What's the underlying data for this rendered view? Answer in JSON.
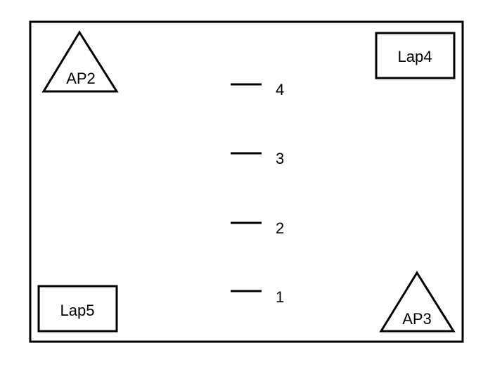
{
  "diagram": {
    "access_points": [
      {
        "label": "AP2"
      },
      {
        "label": "AP3"
      }
    ],
    "laptops": [
      {
        "label": "Lap4"
      },
      {
        "label": "Lap5"
      }
    ],
    "position_markers": [
      {
        "label": "4"
      },
      {
        "label": "3"
      },
      {
        "label": "2"
      },
      {
        "label": "1"
      }
    ]
  }
}
